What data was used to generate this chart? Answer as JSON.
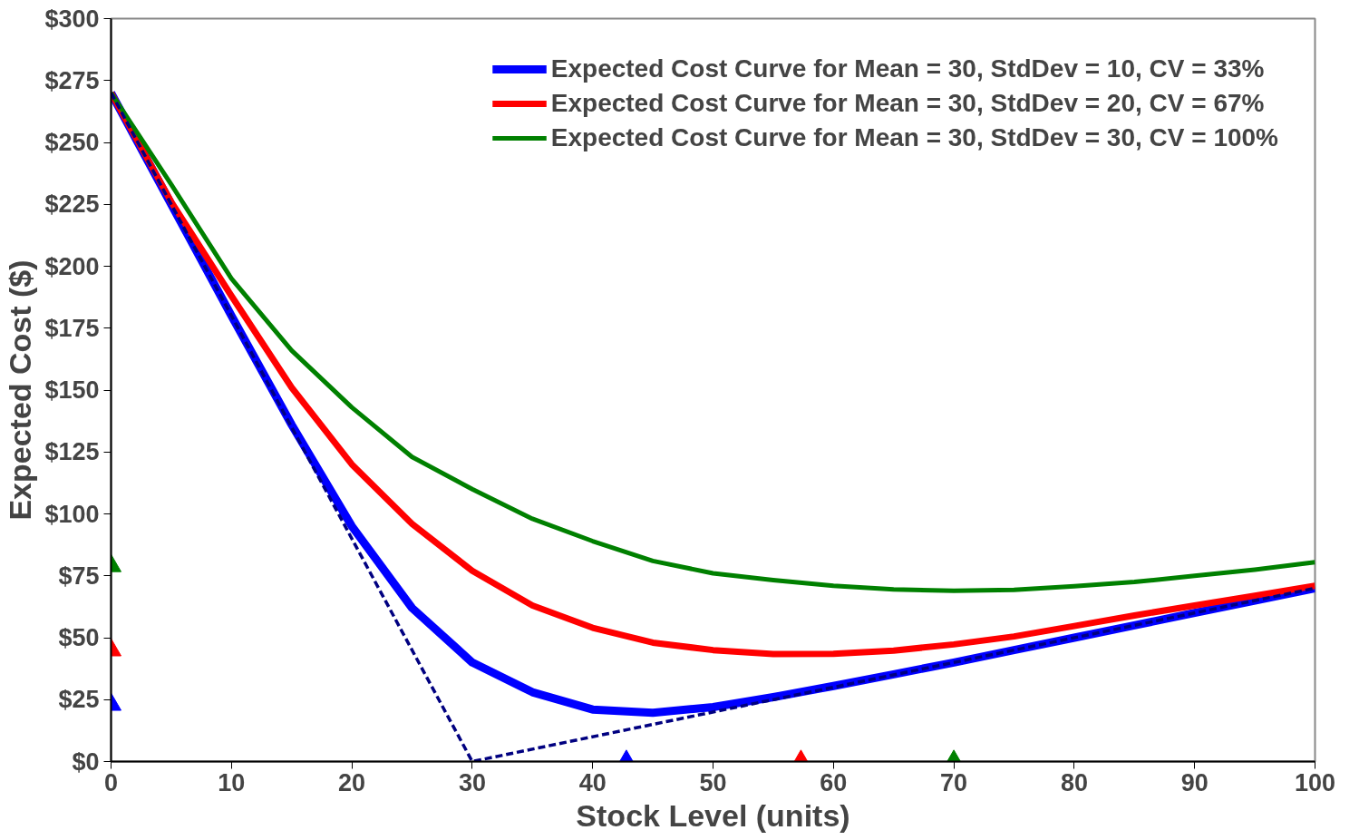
{
  "chart_data": {
    "type": "line",
    "xlabel": "Stock Level (units)",
    "ylabel": "Expected Cost ($)",
    "x": [
      0,
      5,
      10,
      15,
      20,
      25,
      30,
      35,
      40,
      45,
      50,
      55,
      60,
      65,
      70,
      75,
      80,
      85,
      90,
      95,
      100
    ],
    "series": [
      {
        "name": "Expected Cost Curve for Mean = 30, StdDev = 10, CV = 33%",
        "color": "#0000ff",
        "values": [
          270,
          225,
          180,
          136,
          95,
          62,
          40,
          28,
          21,
          19.7,
          22,
          26,
          30.5,
          35.2,
          40,
          45,
          50,
          55,
          60,
          65,
          70
        ]
      },
      {
        "name": "Expected Cost Curve for Mean = 30, StdDev = 20, CV = 67%",
        "color": "#ff0000",
        "values": [
          270,
          226,
          188,
          151,
          120,
          96,
          77,
          63,
          54,
          48,
          45,
          43.4,
          43.5,
          44.8,
          47.3,
          50.5,
          54.7,
          59,
          63,
          67,
          71
        ]
      },
      {
        "name": "Expected Cost Curve for Mean = 30, StdDev = 30, CV = 100%",
        "color": "#008000",
        "values": [
          270,
          233,
          195,
          166,
          143,
          123,
          110,
          98,
          89,
          81,
          76,
          73.3,
          71,
          69.5,
          69,
          69.3,
          70.8,
          72.5,
          75,
          77.5,
          80.5
        ]
      },
      {
        "color": "#000080",
        "x": [
          0,
          30,
          100
        ],
        "values": [
          270,
          0,
          70
        ],
        "line_style": "dashed"
      },
      {
        "type": "scatter",
        "marker": "triangle",
        "color": "#0000ff",
        "x": [
          0,
          42.8
        ],
        "values": [
          23,
          0
        ]
      },
      {
        "type": "scatter",
        "marker": "triangle",
        "color": "#ff0000",
        "x": [
          0,
          57.3
        ],
        "values": [
          45,
          0
        ]
      },
      {
        "type": "scatter",
        "marker": "triangle",
        "color": "#008000",
        "x": [
          0,
          70
        ],
        "values": [
          79,
          0
        ]
      }
    ],
    "xlim": [
      0,
      100
    ],
    "ylim": [
      0,
      300
    ],
    "xticks": [
      0,
      10,
      20,
      30,
      40,
      50,
      60,
      70,
      80,
      90,
      100
    ],
    "yticks": [
      {
        "value": 0,
        "label": "$0"
      },
      {
        "value": 25,
        "label": "$25"
      },
      {
        "value": 50,
        "label": "$50"
      },
      {
        "value": 75,
        "label": "$75"
      },
      {
        "value": 100,
        "label": "$100"
      },
      {
        "value": 125,
        "label": "$125"
      },
      {
        "value": 150,
        "label": "$150"
      },
      {
        "value": 175,
        "label": "$175"
      },
      {
        "value": 200,
        "label": "$200"
      },
      {
        "value": 225,
        "label": "$225"
      },
      {
        "value": 250,
        "label": "$250"
      },
      {
        "value": 275,
        "label": "$275"
      },
      {
        "value": 300,
        "label": "$300"
      }
    ],
    "grid": false,
    "legend": "top right"
  }
}
